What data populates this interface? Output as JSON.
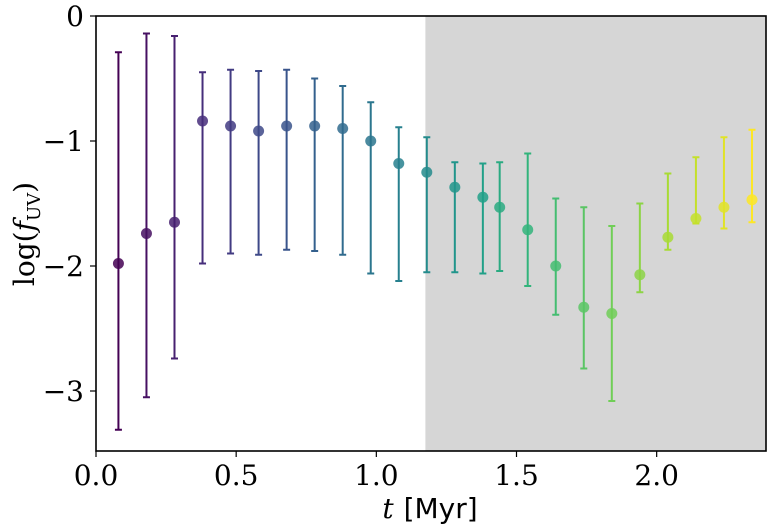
{
  "chart_data": {
    "type": "errorbar_scatter",
    "xlabel": [
      "t",
      "[Myr]"
    ],
    "ylabel": [
      "log(",
      "f",
      "UV",
      ")"
    ],
    "x": [
      0.08,
      0.18,
      0.28,
      0.38,
      0.48,
      0.58,
      0.68,
      0.78,
      0.88,
      0.98,
      1.08,
      1.18,
      1.28,
      1.38,
      1.44,
      1.54,
      1.64,
      1.74,
      1.84,
      1.94,
      2.04,
      2.14,
      2.24,
      2.34
    ],
    "values": [
      -1.98,
      -1.74,
      -1.65,
      -0.84,
      -0.88,
      -0.92,
      -0.88,
      -0.88,
      -0.9,
      -1.0,
      -1.18,
      -1.25,
      -1.37,
      -1.45,
      -1.53,
      -1.71,
      -2.0,
      -2.33,
      -2.38,
      -2.07,
      -1.77,
      -1.62,
      -1.53,
      -1.47
    ],
    "ymax": [
      -0.29,
      -0.14,
      -0.16,
      -0.45,
      -0.43,
      -0.44,
      -0.43,
      -0.5,
      -0.56,
      -0.69,
      -0.89,
      -0.97,
      -1.17,
      -1.18,
      -1.17,
      -1.1,
      -1.46,
      -1.53,
      -1.68,
      -1.5,
      -1.26,
      -1.13,
      -0.97,
      -0.91
    ],
    "ymin": [
      -3.31,
      -3.05,
      -2.74,
      -1.98,
      -1.9,
      -1.91,
      -1.87,
      -1.88,
      -1.91,
      -2.06,
      -2.12,
      -2.05,
      -2.05,
      -2.06,
      -2.04,
      -2.16,
      -2.39,
      -2.82,
      -3.08,
      -2.21,
      -1.87,
      -1.66,
      -1.7,
      -1.65
    ],
    "colormap": "viridis",
    "shade_from": 1.175,
    "shade_color": "#d6d6d6",
    "xlim": [
      0,
      2.39
    ],
    "ylim": [
      -3.48,
      0
    ],
    "xticks": [
      {
        "value": 0,
        "label": "0.0"
      },
      {
        "value": 0.5,
        "label": "0.5"
      },
      {
        "value": 1,
        "label": "1.0"
      },
      {
        "value": 1.5,
        "label": "1.5"
      },
      {
        "value": 2,
        "label": "2.0"
      }
    ],
    "yticks": [
      0,
      {
        "value": -1,
        "label": "−1"
      },
      {
        "value": -2,
        "label": "−2"
      },
      {
        "value": -3,
        "label": "−3"
      }
    ]
  }
}
